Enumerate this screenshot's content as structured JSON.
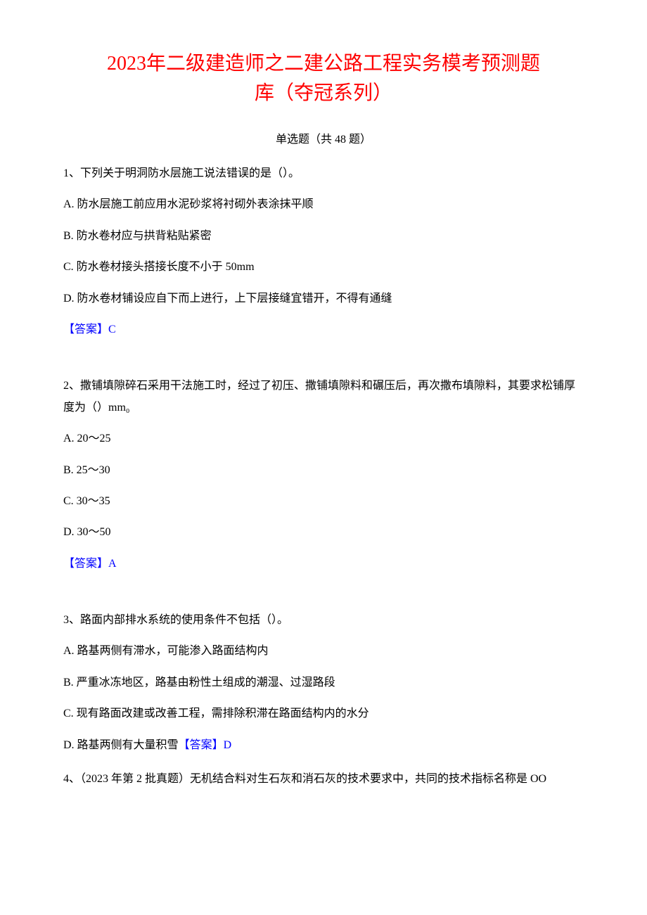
{
  "document": {
    "title_line1": "2023年二级建造师之二建公路工程实务模考预测题",
    "title_line2": "库（夺冠系列）",
    "section_header": "单选题（共 48 题）",
    "title_color": "#ff0000",
    "answer_color": "#0000ff",
    "text_color": "#000000",
    "background_color": "#ffffff",
    "title_fontsize": 28,
    "body_fontsize": 16,
    "questions": [
      {
        "number": "1",
        "stem": "1、下列关于明洞防水层施工说法错误的是（）。",
        "options": [
          "A. 防水层施工前应用水泥砂浆将衬砌外表涂抹平顺",
          "B. 防水卷材应与拱背粘贴紧密",
          "C. 防水卷材接头搭接长度不小于 50mm",
          "D. 防水卷材铺设应自下而上进行，上下层接缝宜错开，不得有通缝"
        ],
        "answer_label": "【答案】",
        "answer_value": "C",
        "inline_answer": false
      },
      {
        "number": "2",
        "stem": "2、撒铺填隙碎石采用干法施工时，经过了初压、撒铺填隙料和碾压后，再次撒布填隙料，其要求松铺厚度为（）mm₀",
        "options": [
          "A.  20～25",
          "B.  25～30",
          "C.  30～35",
          "D.  30～50"
        ],
        "answer_label": "【答案】",
        "answer_value": "A",
        "inline_answer": false
      },
      {
        "number": "3",
        "stem": "3、路面内部排水系统的使用条件不包括（）。",
        "options": [
          "A. 路基两侧有滞水，可能渗入路面结构内",
          "B. 严重冰冻地区，路基由粉性土组成的潮湿、过湿路段",
          "C. 现有路面改建或改善工程，需排除积滞在路面结构内的水分",
          "D. 路基两侧有大量积雪"
        ],
        "answer_label": "【答案】",
        "answer_value": "D",
        "inline_answer": true
      },
      {
        "number": "4",
        "stem": "4、（2023 年第 2 批真题）无机结合料对生石灰和消石灰的技术要求中，共同的技术指标名称是 OO",
        "options": [],
        "answer_label": "",
        "answer_value": "",
        "inline_answer": false
      }
    ]
  }
}
